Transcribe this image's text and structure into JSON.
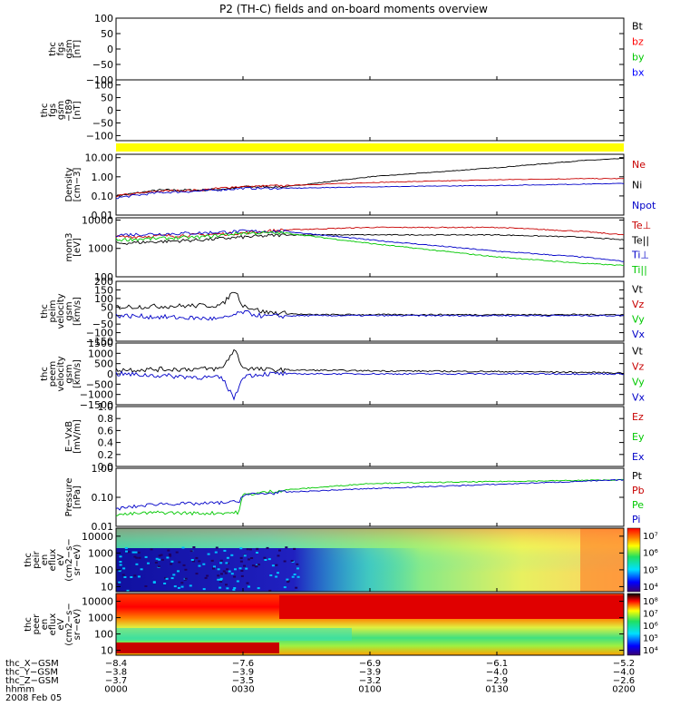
{
  "title": "P2 (TH-C) fields and on-board moments overview",
  "chart_data": [
    {
      "type": "line",
      "name": "fgs-gsm",
      "ylabel": [
        "thc",
        "fgs",
        "gsm",
        "[nT]"
      ],
      "ylim": [
        -100,
        100
      ],
      "scale": "linear",
      "ticks": [
        "100",
        "50",
        "0",
        "−50",
        "−100"
      ],
      "legend": [
        {
          "label": "Bt",
          "color": "#000000"
        },
        {
          "label": "bz",
          "color": "#ff0000"
        },
        {
          "label": "by",
          "color": "#00c800"
        },
        {
          "label": "bx",
          "color": "#0000ff"
        }
      ],
      "series": []
    },
    {
      "type": "line",
      "name": "fgs-gsm-t89",
      "ylabel": [
        "thc",
        "fgs",
        "gsm",
        "−t89",
        "[nT]"
      ],
      "ylim": [
        -120,
        120
      ],
      "scale": "linear",
      "ticks": [
        "100",
        "50",
        "0",
        "−50",
        "−100"
      ],
      "legend": [],
      "series": []
    },
    {
      "type": "bar",
      "name": "mode-bar",
      "color": "#ffff00",
      "note": "yellow status bar"
    },
    {
      "type": "line",
      "name": "density",
      "ylabel": [
        "Density",
        "[cm−3]"
      ],
      "ylim": [
        0.01,
        15
      ],
      "scale": "log",
      "ticks": [
        "10.00",
        "1.00",
        "0.10",
        "0.01"
      ],
      "legend": [
        {
          "label": "Ne",
          "color": "#c80000"
        },
        {
          "label": "Ni",
          "color": "#000000"
        },
        {
          "label": "Npot",
          "color": "#0000c8"
        }
      ],
      "series": [
        {
          "name": "Ni",
          "color": "#000000",
          "x": [
            0,
            10,
            20,
            28,
            30,
            40,
            60,
            90,
            110,
            120
          ],
          "y": [
            0.1,
            0.2,
            0.2,
            0.25,
            0.3,
            0.3,
            1.0,
            3.0,
            7.0,
            9.0
          ]
        },
        {
          "name": "Ne",
          "color": "#c80000",
          "x": [
            0,
            10,
            20,
            28,
            30,
            40,
            60,
            90,
            110,
            120
          ],
          "y": [
            0.1,
            0.18,
            0.2,
            0.3,
            0.3,
            0.35,
            0.5,
            0.7,
            0.8,
            0.8
          ]
        },
        {
          "name": "Npot",
          "color": "#0000c8",
          "x": [
            0,
            10,
            20,
            30,
            40,
            60,
            90,
            120
          ],
          "y": [
            0.08,
            0.15,
            0.18,
            0.25,
            0.25,
            0.3,
            0.35,
            0.45
          ]
        }
      ]
    },
    {
      "type": "line",
      "name": "temperature",
      "ylabel": [
        "mom3",
        "[eV]"
      ],
      "ylim": [
        100,
        12000
      ],
      "scale": "log",
      "ticks": [
        "10000",
        "1000",
        "100"
      ],
      "legend": [
        {
          "label": "Te⊥",
          "color": "#c80000"
        },
        {
          "label": "Te||",
          "color": "#000000"
        },
        {
          "label": "Ti⊥",
          "color": "#0000c8"
        },
        {
          "label": "Ti||",
          "color": "#00c800"
        }
      ],
      "series": [
        {
          "name": "Te⊥",
          "color": "#c80000",
          "x": [
            0,
            20,
            30,
            40,
            60,
            90,
            110,
            120
          ],
          "y": [
            2500,
            3000,
            3500,
            4500,
            5500,
            5500,
            4000,
            3000
          ]
        },
        {
          "name": "Te||",
          "color": "#000000",
          "x": [
            0,
            20,
            30,
            40,
            60,
            90,
            110,
            120
          ],
          "y": [
            1500,
            2000,
            2500,
            3000,
            3000,
            3000,
            2500,
            2000
          ]
        },
        {
          "name": "Ti⊥",
          "color": "#0000c8",
          "x": [
            0,
            20,
            30,
            40,
            60,
            90,
            110,
            120
          ],
          "y": [
            3000,
            3500,
            4000,
            4000,
            2000,
            800,
            500,
            350
          ]
        },
        {
          "name": "Ti||",
          "color": "#00c800",
          "x": [
            0,
            20,
            30,
            40,
            60,
            90,
            110,
            120
          ],
          "y": [
            2000,
            2500,
            3500,
            3500,
            1500,
            500,
            300,
            250
          ]
        }
      ]
    },
    {
      "type": "line",
      "name": "peim-velocity",
      "ylabel": [
        "thc",
        "peim",
        "velocity",
        "gsm",
        "[km/s]"
      ],
      "ylim": [
        -150,
        200
      ],
      "scale": "linear",
      "ticks": [
        "200",
        "150",
        "100",
        "50",
        "0",
        "−50",
        "−100",
        "−150"
      ],
      "legend": [
        {
          "label": "Vt",
          "color": "#000000"
        },
        {
          "label": "Vz",
          "color": "#c80000"
        },
        {
          "label": "Vy",
          "color": "#00c800"
        },
        {
          "label": "Vx",
          "color": "#0000c8"
        }
      ],
      "series": [
        {
          "name": "Vt",
          "color": "#000000",
          "x": [
            0,
            25,
            28,
            30,
            35,
            45,
            120
          ],
          "y": [
            50,
            60,
            150,
            60,
            20,
            5,
            5
          ]
        },
        {
          "name": "Vx",
          "color": "#0000c8",
          "x": [
            0,
            25,
            30,
            35,
            45,
            120
          ],
          "y": [
            0,
            -20,
            20,
            -5,
            0,
            0
          ]
        }
      ]
    },
    {
      "type": "line",
      "name": "peem-velocity",
      "ylabel": [
        "thc",
        "peem",
        "velocity",
        "gsm",
        "[km/s]"
      ],
      "ylim": [
        -1500,
        1500
      ],
      "scale": "linear",
      "ticks": [
        "1500",
        "1000",
        "500",
        "0",
        "−500",
        "−1000",
        "−1500"
      ],
      "legend": [
        {
          "label": "Vt",
          "color": "#000000"
        },
        {
          "label": "Vz",
          "color": "#c80000"
        },
        {
          "label": "Vy",
          "color": "#00c800"
        },
        {
          "label": "Vx",
          "color": "#0000c8"
        }
      ],
      "series": [
        {
          "name": "Vt",
          "color": "#000000",
          "x": [
            0,
            25,
            28,
            30,
            35,
            60,
            100,
            120
          ],
          "y": [
            200,
            250,
            1200,
            300,
            200,
            150,
            100,
            50
          ]
        },
        {
          "name": "Vx",
          "color": "#0000c8",
          "x": [
            0,
            25,
            28,
            30,
            35,
            120
          ],
          "y": [
            0,
            -200,
            -1200,
            -100,
            0,
            0
          ]
        }
      ]
    },
    {
      "type": "line",
      "name": "e-vxb",
      "ylabel": [
        "E−VxB",
        "[mV/m]"
      ],
      "ylim": [
        0,
        1.0
      ],
      "scale": "linear",
      "ticks": [
        "1.0",
        "0.8",
        "0.6",
        "0.4",
        "0.2",
        "0.0"
      ],
      "legend": [
        {
          "label": "Ez",
          "color": "#c80000"
        },
        {
          "label": "Ey",
          "color": "#00c800"
        },
        {
          "label": "Ex",
          "color": "#0000c8"
        }
      ],
      "series": []
    },
    {
      "type": "line",
      "name": "pressure",
      "ylabel": [
        "Pressure",
        "[nPa]"
      ],
      "ylim": [
        0.01,
        1.0
      ],
      "scale": "log",
      "ticks": [
        "1.00",
        "0.10",
        "0.01"
      ],
      "legend": [
        {
          "label": "Pt",
          "color": "#000000"
        },
        {
          "label": "Pb",
          "color": "#c80000"
        },
        {
          "label": "Pe",
          "color": "#00c800"
        },
        {
          "label": "Pi",
          "color": "#0000c8"
        }
      ],
      "series": [
        {
          "name": "Pe",
          "color": "#00c800",
          "x": [
            0,
            10,
            20,
            29,
            30,
            40,
            60,
            90,
            120
          ],
          "y": [
            0.025,
            0.03,
            0.028,
            0.03,
            0.12,
            0.18,
            0.3,
            0.35,
            0.4
          ]
        },
        {
          "name": "Pi",
          "color": "#0000c8",
          "x": [
            0,
            10,
            20,
            29,
            30,
            40,
            60,
            90,
            120
          ],
          "y": [
            0.04,
            0.06,
            0.06,
            0.07,
            0.12,
            0.15,
            0.2,
            0.28,
            0.4
          ]
        }
      ]
    },
    {
      "type": "heatmap",
      "name": "peir-eflux",
      "ylabel": [
        "thc",
        "peir",
        "en",
        "eflux",
        "eV",
        "(cm2−s−",
        "sr−eV)"
      ],
      "ylim": [
        5,
        30000
      ],
      "scale": "log",
      "ticks": [
        "10000",
        "1000",
        "100",
        "10"
      ],
      "colorbar": {
        "ticks": [
          "10⁷",
          "10⁶",
          "10⁵",
          "10⁴"
        ]
      }
    },
    {
      "type": "heatmap",
      "name": "peer-eflux",
      "ylabel": [
        "thc",
        "peer",
        "en",
        "eflux",
        "eV",
        "(cm2−s−",
        "sr−eV)"
      ],
      "ylim": [
        5,
        30000
      ],
      "scale": "log",
      "ticks": [
        "10000",
        "1000",
        "100",
        "10"
      ],
      "colorbar": {
        "ticks": [
          "10⁸",
          "10⁷",
          "10⁶",
          "10⁵",
          "10⁴"
        ]
      }
    }
  ],
  "x_axis": {
    "xlim": [
      0,
      120
    ],
    "positions": [
      0,
      30,
      60,
      90,
      120
    ],
    "rows": [
      {
        "label": "thc_X−GSM",
        "values": [
          "−8.4",
          "−7.6",
          "−6.9",
          "−6.1",
          "−5.2"
        ]
      },
      {
        "label": "thc_Y−GSM",
        "values": [
          "−3.8",
          "−3.9",
          "−3.9",
          "−4.0",
          "−4.0"
        ]
      },
      {
        "label": "thc_Z−GSM",
        "values": [
          "−3.7",
          "−3.5",
          "−3.2",
          "−2.9",
          "−2.6"
        ]
      },
      {
        "label": "hhmm",
        "values": [
          "0000",
          "0030",
          "0100",
          "0130",
          "0200"
        ]
      }
    ],
    "date": "2008 Feb 05"
  }
}
